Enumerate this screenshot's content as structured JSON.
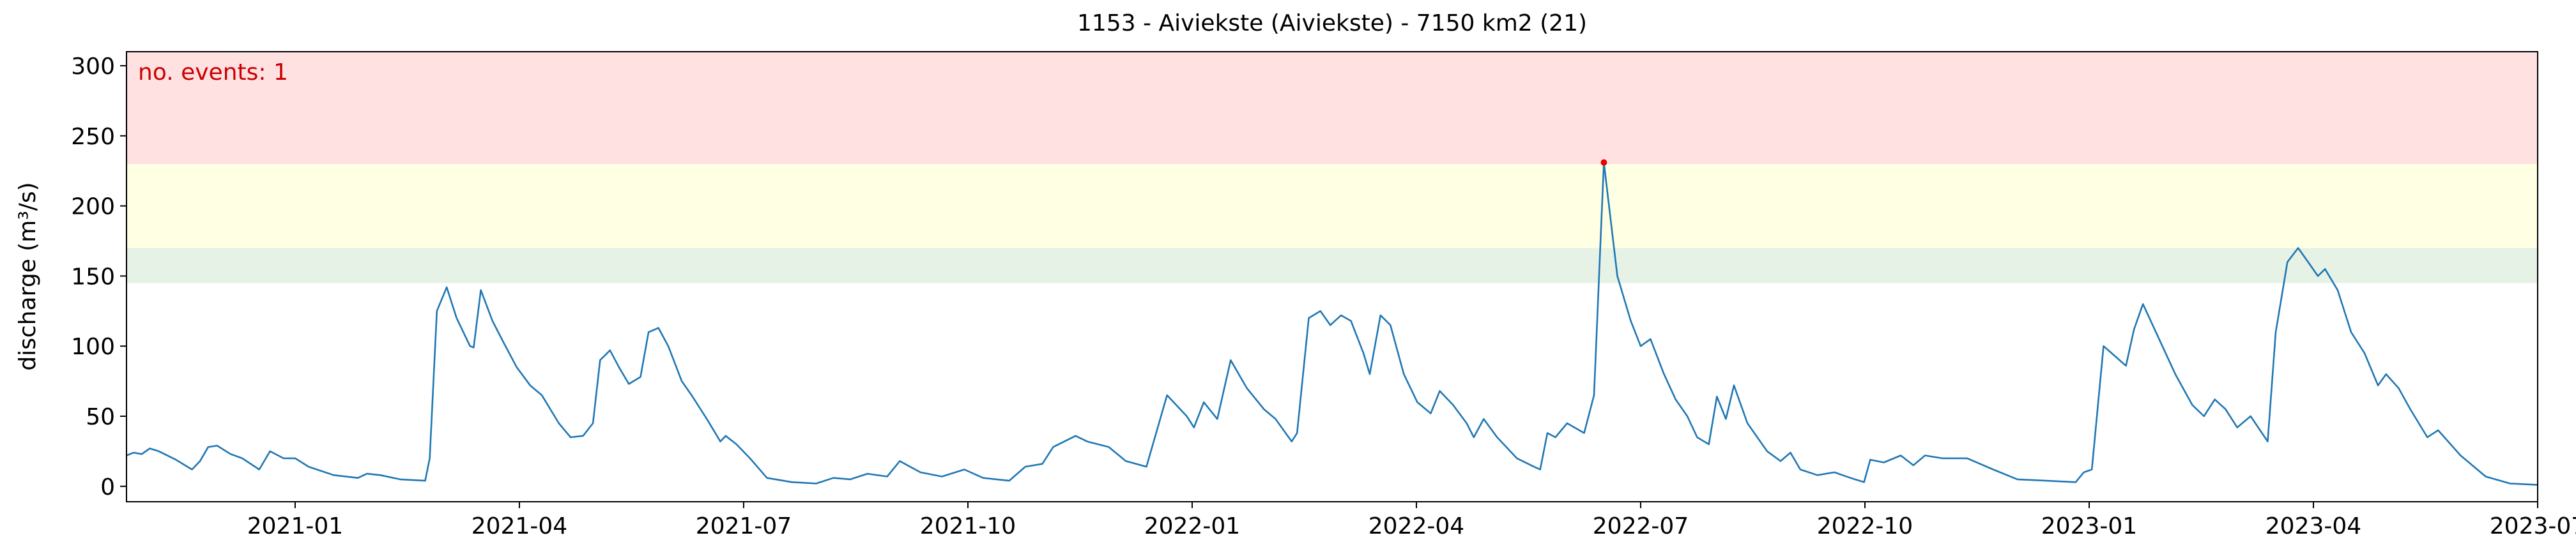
{
  "chart_data": {
    "type": "line",
    "title": "1153 - Aiviekste (Aiviekste) - 7150 km2 (21)",
    "ylabel": "discharge (m³/s)",
    "annotation": "no. events: 1",
    "annotation_color": "#cc0000",
    "color": "#1f77b4",
    "xlim": [
      2020.812,
      2023.5
    ],
    "ylim": [
      -11,
      310
    ],
    "xticks": [
      {
        "value": 2021.0,
        "label": "2021-01"
      },
      {
        "value": 2021.25,
        "label": "2021-04"
      },
      {
        "value": 2021.5,
        "label": "2021-07"
      },
      {
        "value": 2021.75,
        "label": "2021-10"
      },
      {
        "value": 2022.0,
        "label": "2022-01"
      },
      {
        "value": 2022.25,
        "label": "2022-04"
      },
      {
        "value": 2022.5,
        "label": "2022-07"
      },
      {
        "value": 2022.75,
        "label": "2022-10"
      },
      {
        "value": 2023.0,
        "label": "2023-01"
      },
      {
        "value": 2023.25,
        "label": "2023-04"
      },
      {
        "value": 2023.5,
        "label": "2023-07"
      }
    ],
    "yticks": [
      0,
      50,
      100,
      150,
      200,
      250,
      300
    ],
    "bands": [
      {
        "from": 145,
        "to": 170,
        "color": "#e6f2e6"
      },
      {
        "from": 170,
        "to": 230,
        "color": "#ffffe4"
      },
      {
        "from": 230,
        "to": 310,
        "color": "#ffe1e1"
      }
    ],
    "events": {
      "x": [
        2022.459
      ],
      "values": [
        231
      ],
      "color": "#e00000"
    },
    "x": [
      2020.812,
      2020.82,
      2020.829,
      2020.838,
      2020.848,
      2020.867,
      2020.885,
      2020.894,
      2020.903,
      2020.913,
      2020.928,
      2020.941,
      2020.96,
      2020.972,
      2020.987,
      2021.0,
      2021.015,
      2021.043,
      2021.07,
      2021.08,
      2021.095,
      2021.117,
      2021.145,
      2021.15,
      2021.158,
      2021.169,
      2021.18,
      2021.195,
      2021.199,
      2021.207,
      2021.22,
      2021.232,
      2021.247,
      2021.262,
      2021.275,
      2021.294,
      2021.307,
      2021.321,
      2021.332,
      2021.34,
      2021.351,
      2021.361,
      2021.372,
      2021.385,
      2021.394,
      2021.405,
      2021.416,
      2021.431,
      2021.442,
      2021.459,
      2021.474,
      2021.48,
      2021.492,
      2021.507,
      2021.526,
      2021.554,
      2021.581,
      2021.6,
      2021.619,
      2021.638,
      2021.66,
      2021.674,
      2021.697,
      2021.721,
      2021.746,
      2021.767,
      2021.796,
      2021.814,
      2021.833,
      2021.845,
      2021.87,
      2021.883,
      2021.907,
      2021.926,
      2021.949,
      2021.972,
      2021.994,
      2022.002,
      2022.013,
      2022.028,
      2022.043,
      2022.061,
      2022.08,
      2022.093,
      2022.111,
      2022.117,
      2022.13,
      2022.143,
      2022.154,
      2022.166,
      2022.177,
      2022.191,
      2022.198,
      2022.21,
      2022.221,
      2022.236,
      2022.251,
      2022.266,
      2022.276,
      2022.291,
      2022.306,
      2022.314,
      2022.325,
      2022.34,
      2022.362,
      2022.381,
      2022.388,
      2022.396,
      2022.405,
      2022.418,
      2022.437,
      2022.448,
      2022.459,
      2022.474,
      2022.489,
      2022.5,
      2022.511,
      2022.526,
      2022.539,
      2022.552,
      2022.563,
      2022.576,
      2022.585,
      2022.595,
      2022.604,
      2022.619,
      2022.641,
      2022.656,
      2022.667,
      2022.678,
      2022.697,
      2022.716,
      2022.734,
      2022.749,
      2022.756,
      2022.771,
      2022.79,
      2022.804,
      2022.817,
      2022.836,
      2022.864,
      2022.893,
      2022.92,
      2022.985,
      2022.994,
      2023.003,
      2023.016,
      2023.041,
      2023.05,
      2023.06,
      2023.078,
      2023.096,
      2023.115,
      2023.128,
      2023.14,
      2023.152,
      2023.165,
      2023.18,
      2023.199,
      2023.208,
      2023.221,
      2023.233,
      2023.244,
      2023.255,
      2023.263,
      2023.277,
      2023.292,
      2023.307,
      2023.322,
      2023.331,
      2023.345,
      2023.358,
      2023.377,
      2023.389,
      2023.414,
      2023.442,
      2023.469,
      2023.5
    ],
    "values": [
      22,
      24,
      23,
      27,
      25,
      19,
      12,
      18,
      28,
      29,
      23,
      20,
      12,
      25,
      20,
      20,
      14,
      8,
      6,
      9,
      8,
      5,
      4,
      20,
      125,
      142,
      120,
      100,
      99,
      140,
      118,
      103,
      85,
      72,
      65,
      45,
      35,
      36,
      45,
      90,
      97,
      85,
      73,
      78,
      110,
      113,
      100,
      75,
      65,
      48,
      32,
      36,
      30,
      20,
      6,
      3,
      2,
      6,
      5,
      9,
      7,
      18,
      10,
      7,
      12,
      6,
      4,
      14,
      16,
      28,
      36,
      32,
      28,
      18,
      14,
      65,
      50,
      42,
      60,
      48,
      90,
      70,
      55,
      48,
      32,
      38,
      120,
      125,
      115,
      122,
      118,
      95,
      80,
      122,
      115,
      80,
      60,
      52,
      68,
      58,
      45,
      35,
      48,
      35,
      20,
      14,
      12,
      38,
      35,
      45,
      38,
      65,
      231,
      150,
      118,
      100,
      105,
      80,
      62,
      50,
      35,
      30,
      64,
      48,
      72,
      45,
      25,
      18,
      24,
      12,
      8,
      10,
      6,
      3,
      19,
      17,
      22,
      15,
      22,
      20,
      20,
      12,
      5,
      3,
      10,
      12,
      100,
      86,
      112,
      130,
      105,
      80,
      58,
      50,
      62,
      55,
      42,
      50,
      32,
      110,
      160,
      170,
      160,
      150,
      155,
      140,
      110,
      95,
      72,
      80,
      70,
      55,
      35,
      40,
      22,
      7,
      2,
      1
    ]
  }
}
